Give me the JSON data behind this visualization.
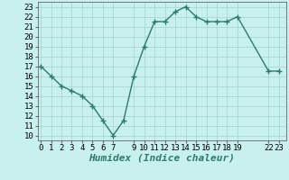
{
  "x": [
    0,
    1,
    2,
    3,
    4,
    5,
    6,
    7,
    8,
    9,
    10,
    11,
    12,
    13,
    14,
    15,
    16,
    17,
    18,
    19,
    22,
    23
  ],
  "y": [
    17,
    16,
    15,
    14.5,
    14,
    13,
    11.5,
    10,
    11.5,
    16,
    19,
    21.5,
    21.5,
    22.5,
    23,
    22,
    21.5,
    21.5,
    21.5,
    22,
    16.5,
    16.5
  ],
  "line_color": "#2d7a6e",
  "marker_color": "#2d7a6e",
  "bg_color": "#c8f0ee",
  "grid_color": "#aad8d4",
  "xlabel": "Humidex (Indice chaleur)",
  "yticks": [
    10,
    11,
    12,
    13,
    14,
    15,
    16,
    17,
    18,
    19,
    20,
    21,
    22,
    23
  ],
  "xtick_positions": [
    0,
    1,
    2,
    3,
    4,
    5,
    6,
    7,
    9,
    10,
    11,
    12,
    13,
    14,
    15,
    16,
    17,
    18,
    19,
    22,
    23
  ],
  "xtick_labels": [
    "0",
    "1",
    "2",
    "3",
    "4",
    "5",
    "6",
    "7",
    "9",
    "10",
    "11",
    "12",
    "13",
    "14",
    "15",
    "16",
    "17",
    "18",
    "19",
    "22",
    "23"
  ],
  "xlim": [
    -0.3,
    23.7
  ],
  "ylim": [
    9.5,
    23.5
  ],
  "tick_fontsize": 6.5,
  "xlabel_fontsize": 8
}
